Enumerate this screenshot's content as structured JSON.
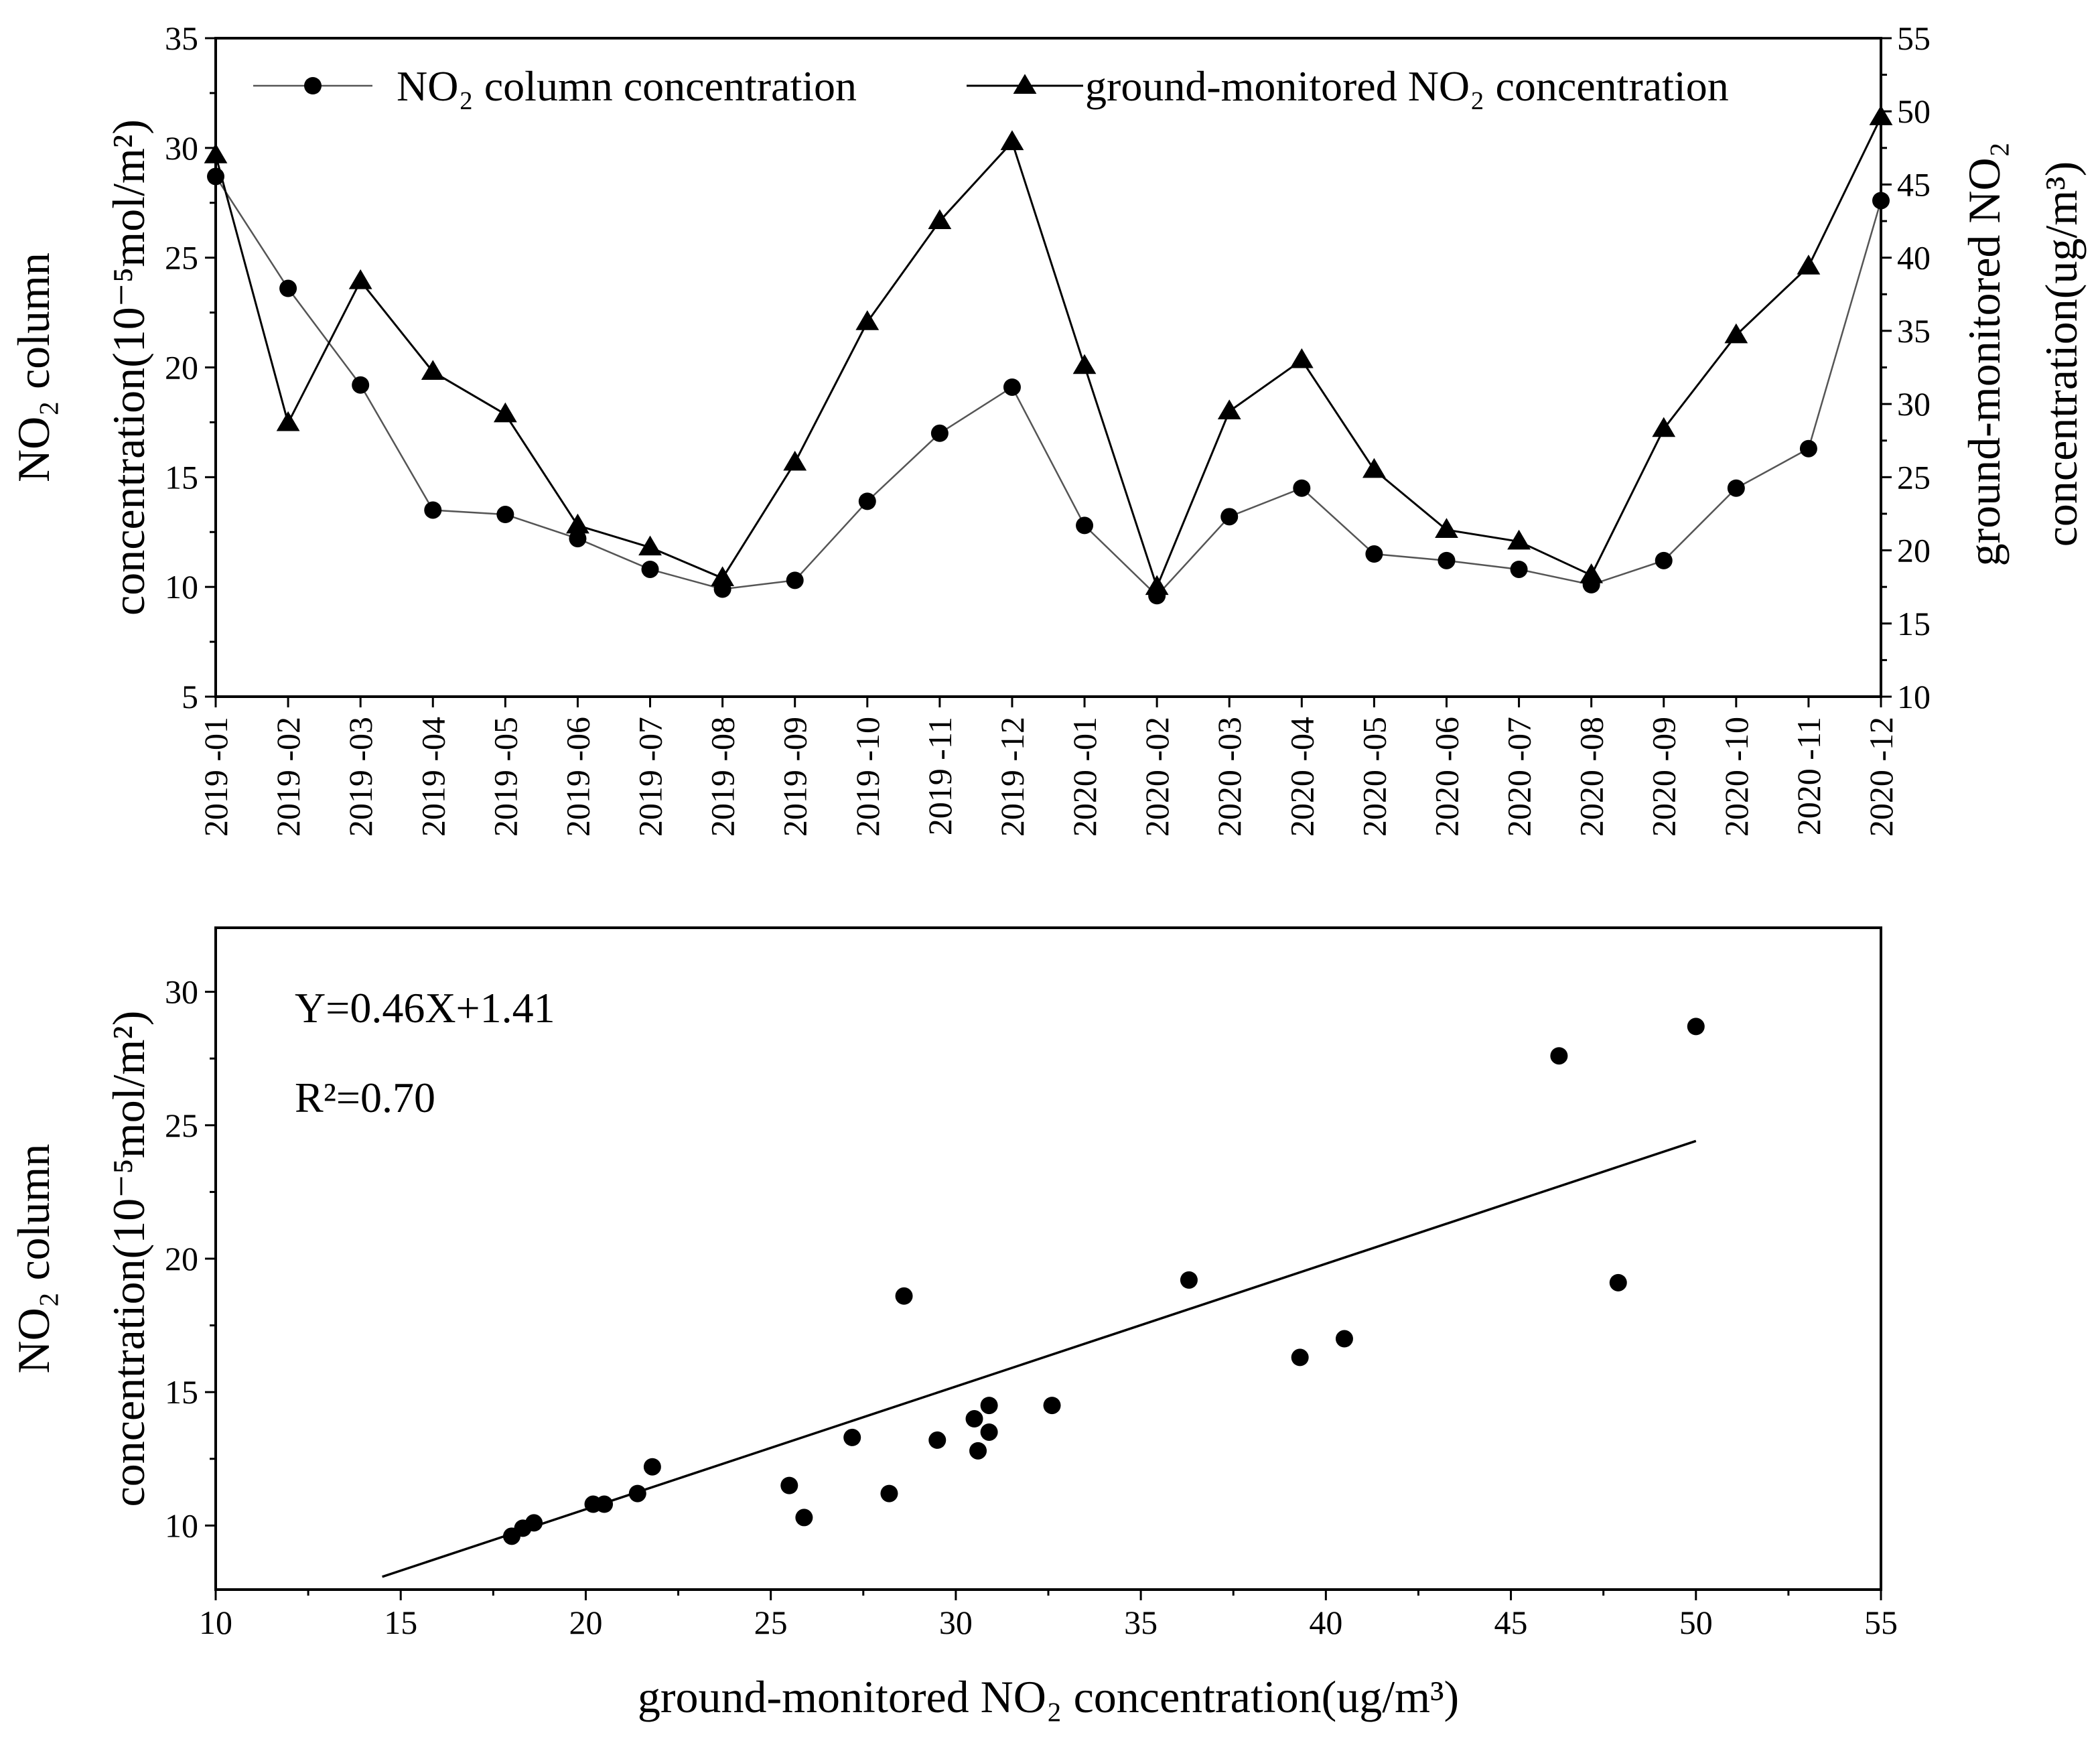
{
  "chart_data": [
    {
      "type": "line",
      "legend_position": "top",
      "categories": [
        "2019 -01",
        "2019 -02",
        "2019 -03",
        "2019 -04",
        "2019 -05",
        "2019 -06",
        "2019 -07",
        "2019 -08",
        "2019 -09",
        "2019 -10",
        "2019 -11",
        "2019 -12",
        "2020 -01",
        "2020 -02",
        "2020 -03",
        "2020 -04",
        "2020 -05",
        "2020 -06",
        "2020 -07",
        "2020 -08",
        "2020 -09",
        "2020 -10",
        "2020 -11",
        "2020 -12"
      ],
      "series": [
        {
          "name": "NO₂ column concentration",
          "marker": "circle",
          "axis": "left",
          "values": [
            28.7,
            23.6,
            19.2,
            13.5,
            13.3,
            12.2,
            10.8,
            9.9,
            10.3,
            13.9,
            17.0,
            19.1,
            12.8,
            9.6,
            13.2,
            14.5,
            11.5,
            11.2,
            10.8,
            10.1,
            11.2,
            14.5,
            16.3,
            27.6
          ]
        },
        {
          "name": "ground-monitored NO₂ concentration",
          "marker": "triangle",
          "axis": "right",
          "values": [
            47.0,
            28.7,
            38.4,
            32.2,
            29.3,
            21.7,
            20.2,
            18.1,
            26.0,
            35.6,
            42.5,
            47.9,
            32.6,
            17.5,
            29.5,
            33.0,
            25.5,
            21.4,
            20.6,
            18.3,
            28.3,
            34.7,
            39.4,
            49.6
          ]
        }
      ],
      "ylabel_left": [
        "NO₂ column",
        "concentration(10⁻⁵mol/m²)"
      ],
      "ylabel_right": [
        "ground-monitored NO₂",
        "concentration(ug/m³)"
      ],
      "ylim_left": [
        5,
        35
      ],
      "ylim_right": [
        10,
        55
      ],
      "yticks_left": [
        5,
        10,
        15,
        20,
        25,
        30,
        35
      ],
      "yticks_right": [
        10,
        15,
        20,
        25,
        30,
        35,
        40,
        45,
        50,
        55
      ],
      "grid": false
    },
    {
      "type": "scatter",
      "xlabel": "ground-monitored NO₂ concentration(ug/m³)",
      "ylabel": [
        "NO₂ column",
        "concentration(10⁻⁵mol/m²)"
      ],
      "xlim": [
        10,
        55
      ],
      "ylim": [
        7.6,
        32.4
      ],
      "xticks": [
        10,
        15,
        20,
        25,
        30,
        35,
        40,
        45,
        50,
        55
      ],
      "yticks": [
        10,
        15,
        20,
        25,
        30
      ],
      "points": [
        [
          18.0,
          9.6
        ],
        [
          18.3,
          9.9
        ],
        [
          18.6,
          10.1
        ],
        [
          20.2,
          10.8
        ],
        [
          20.5,
          10.8
        ],
        [
          21.4,
          11.2
        ],
        [
          21.8,
          12.2
        ],
        [
          25.5,
          11.5
        ],
        [
          25.9,
          10.3
        ],
        [
          27.2,
          13.3
        ],
        [
          28.2,
          11.2
        ],
        [
          28.6,
          18.6
        ],
        [
          29.5,
          13.2
        ],
        [
          30.5,
          14.0
        ],
        [
          30.6,
          12.8
        ],
        [
          30.9,
          14.5
        ],
        [
          30.9,
          13.5
        ],
        [
          32.6,
          14.5
        ],
        [
          36.3,
          19.2
        ],
        [
          39.3,
          16.3
        ],
        [
          40.5,
          17.0
        ],
        [
          46.3,
          27.6
        ],
        [
          47.9,
          19.1
        ],
        [
          50.0,
          28.7
        ]
      ],
      "fit": {
        "slope": 0.46,
        "intercept": 1.41,
        "x_range": [
          14.5,
          50.0
        ]
      },
      "equation_label": "Y=0.46X+1.41",
      "r2_label": "R²=0.70",
      "grid": false
    }
  ]
}
